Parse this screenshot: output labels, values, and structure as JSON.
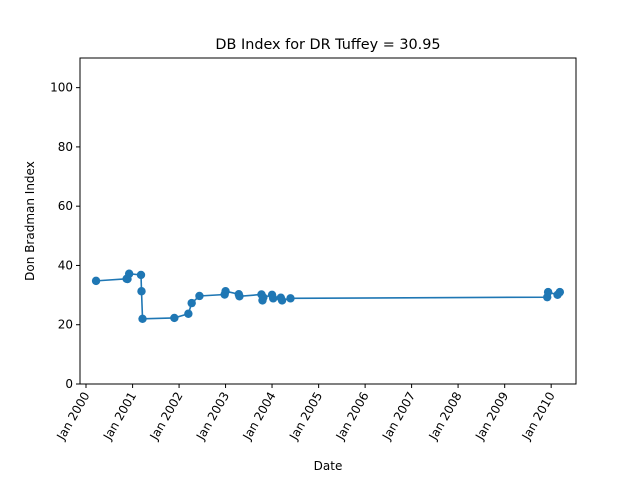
{
  "chart_data": {
    "type": "line",
    "title": "DB Index for DR Tuffey = 30.95",
    "xlabel": "Date",
    "ylabel": "Don Bradman Index",
    "ylim": [
      0,
      110
    ],
    "yticks": [
      0,
      20,
      40,
      60,
      80,
      100
    ],
    "xlim": [
      "1999-11-15",
      "2010-07-15"
    ],
    "xticks": [
      {
        "date": "2000-01-01",
        "label": "Jan 2000"
      },
      {
        "date": "2001-01-01",
        "label": "Jan 2001"
      },
      {
        "date": "2002-01-01",
        "label": "Jan 2002"
      },
      {
        "date": "2003-01-01",
        "label": "Jan 2003"
      },
      {
        "date": "2004-01-01",
        "label": "Jan 2004"
      },
      {
        "date": "2005-01-01",
        "label": "Jan 2005"
      },
      {
        "date": "2006-01-01",
        "label": "Jan 2006"
      },
      {
        "date": "2007-01-01",
        "label": "Jan 2007"
      },
      {
        "date": "2008-01-01",
        "label": "Jan 2008"
      },
      {
        "date": "2009-01-01",
        "label": "Jan 2009"
      },
      {
        "date": "2010-01-01",
        "label": "Jan 2010"
      }
    ],
    "grid": false,
    "legend": "none",
    "series": [
      {
        "color": "#1f77b4",
        "marker": "circle",
        "points": [
          {
            "x": "2000-03-20",
            "y": 34.8
          },
          {
            "x": "2000-11-15",
            "y": 35.5
          },
          {
            "x": "2000-11-22",
            "y": 35.4
          },
          {
            "x": "2000-12-05",
            "y": 37.2
          },
          {
            "x": "2001-03-08",
            "y": 36.8
          },
          {
            "x": "2001-03-12",
            "y": 31.3
          },
          {
            "x": "2001-03-20",
            "y": 22.0
          },
          {
            "x": "2001-11-25",
            "y": 22.3
          },
          {
            "x": "2002-03-15",
            "y": 23.7
          },
          {
            "x": "2002-04-10",
            "y": 27.3
          },
          {
            "x": "2002-06-10",
            "y": 29.7
          },
          {
            "x": "2002-12-25",
            "y": 30.2
          },
          {
            "x": "2003-01-01",
            "y": 31.3
          },
          {
            "x": "2003-04-15",
            "y": 30.3
          },
          {
            "x": "2003-04-20",
            "y": 29.6
          },
          {
            "x": "2003-10-10",
            "y": 30.2
          },
          {
            "x": "2003-10-18",
            "y": 28.2
          },
          {
            "x": "2003-10-25",
            "y": 29.2
          },
          {
            "x": "2004-01-01",
            "y": 30.1
          },
          {
            "x": "2004-01-10",
            "y": 28.9
          },
          {
            "x": "2004-03-10",
            "y": 29.1
          },
          {
            "x": "2004-03-20",
            "y": 28.2
          },
          {
            "x": "2004-05-25",
            "y": 28.9
          },
          {
            "x": "2009-12-01",
            "y": 29.3
          },
          {
            "x": "2009-12-08",
            "y": 31.0
          },
          {
            "x": "2010-02-20",
            "y": 30.1
          },
          {
            "x": "2010-03-10",
            "y": 31.0
          }
        ]
      }
    ]
  }
}
